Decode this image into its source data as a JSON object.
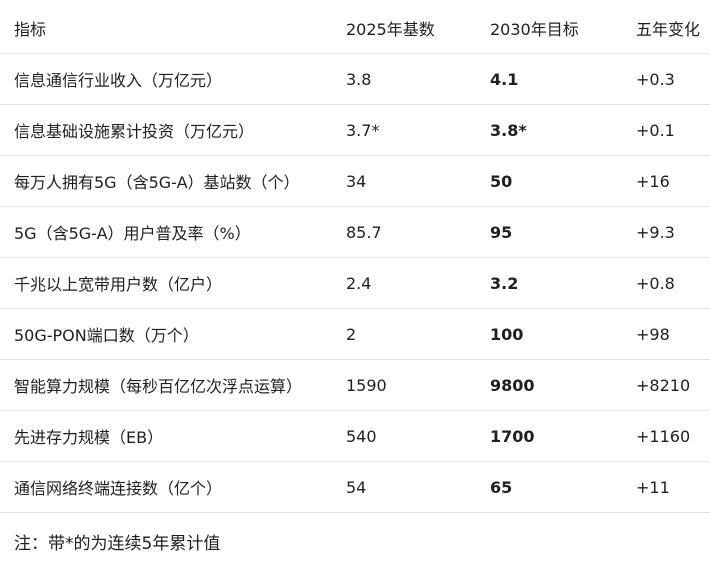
{
  "table": {
    "header": [
      "指标",
      "2025年基数",
      "2030年目标",
      "五年变化"
    ],
    "rows": [
      [
        "信息通信行业收入（万亿元）",
        "3.8",
        "4.1",
        "+0.3"
      ],
      [
        "信息基础设施累计投资（万亿元）",
        "3.7*",
        "3.8*",
        "+0.1"
      ],
      [
        "每万人拥有5G（含5G-A）基站数（个）",
        "34",
        "50",
        "+16"
      ],
      [
        "5G（含5G-A）用户普及率（%）",
        "85.7",
        "95",
        "+9.3"
      ],
      [
        "千兆以上宽带用户数（亿户）",
        "2.4",
        "3.2",
        "+0.8"
      ],
      [
        "50G-PON端口数（万个）",
        "2",
        "100",
        "+98"
      ],
      [
        "智能算力规模（每秒百亿亿次浮点运算）",
        "1590",
        "9800",
        "+8210"
      ],
      [
        "先进存力规模（EB）",
        "540",
        "1700",
        "+1160"
      ],
      [
        "通信网络终端连接数（亿个）",
        "54",
        "65",
        "+11"
      ]
    ]
  },
  "note": "注：带*的为连续5年累计值"
}
